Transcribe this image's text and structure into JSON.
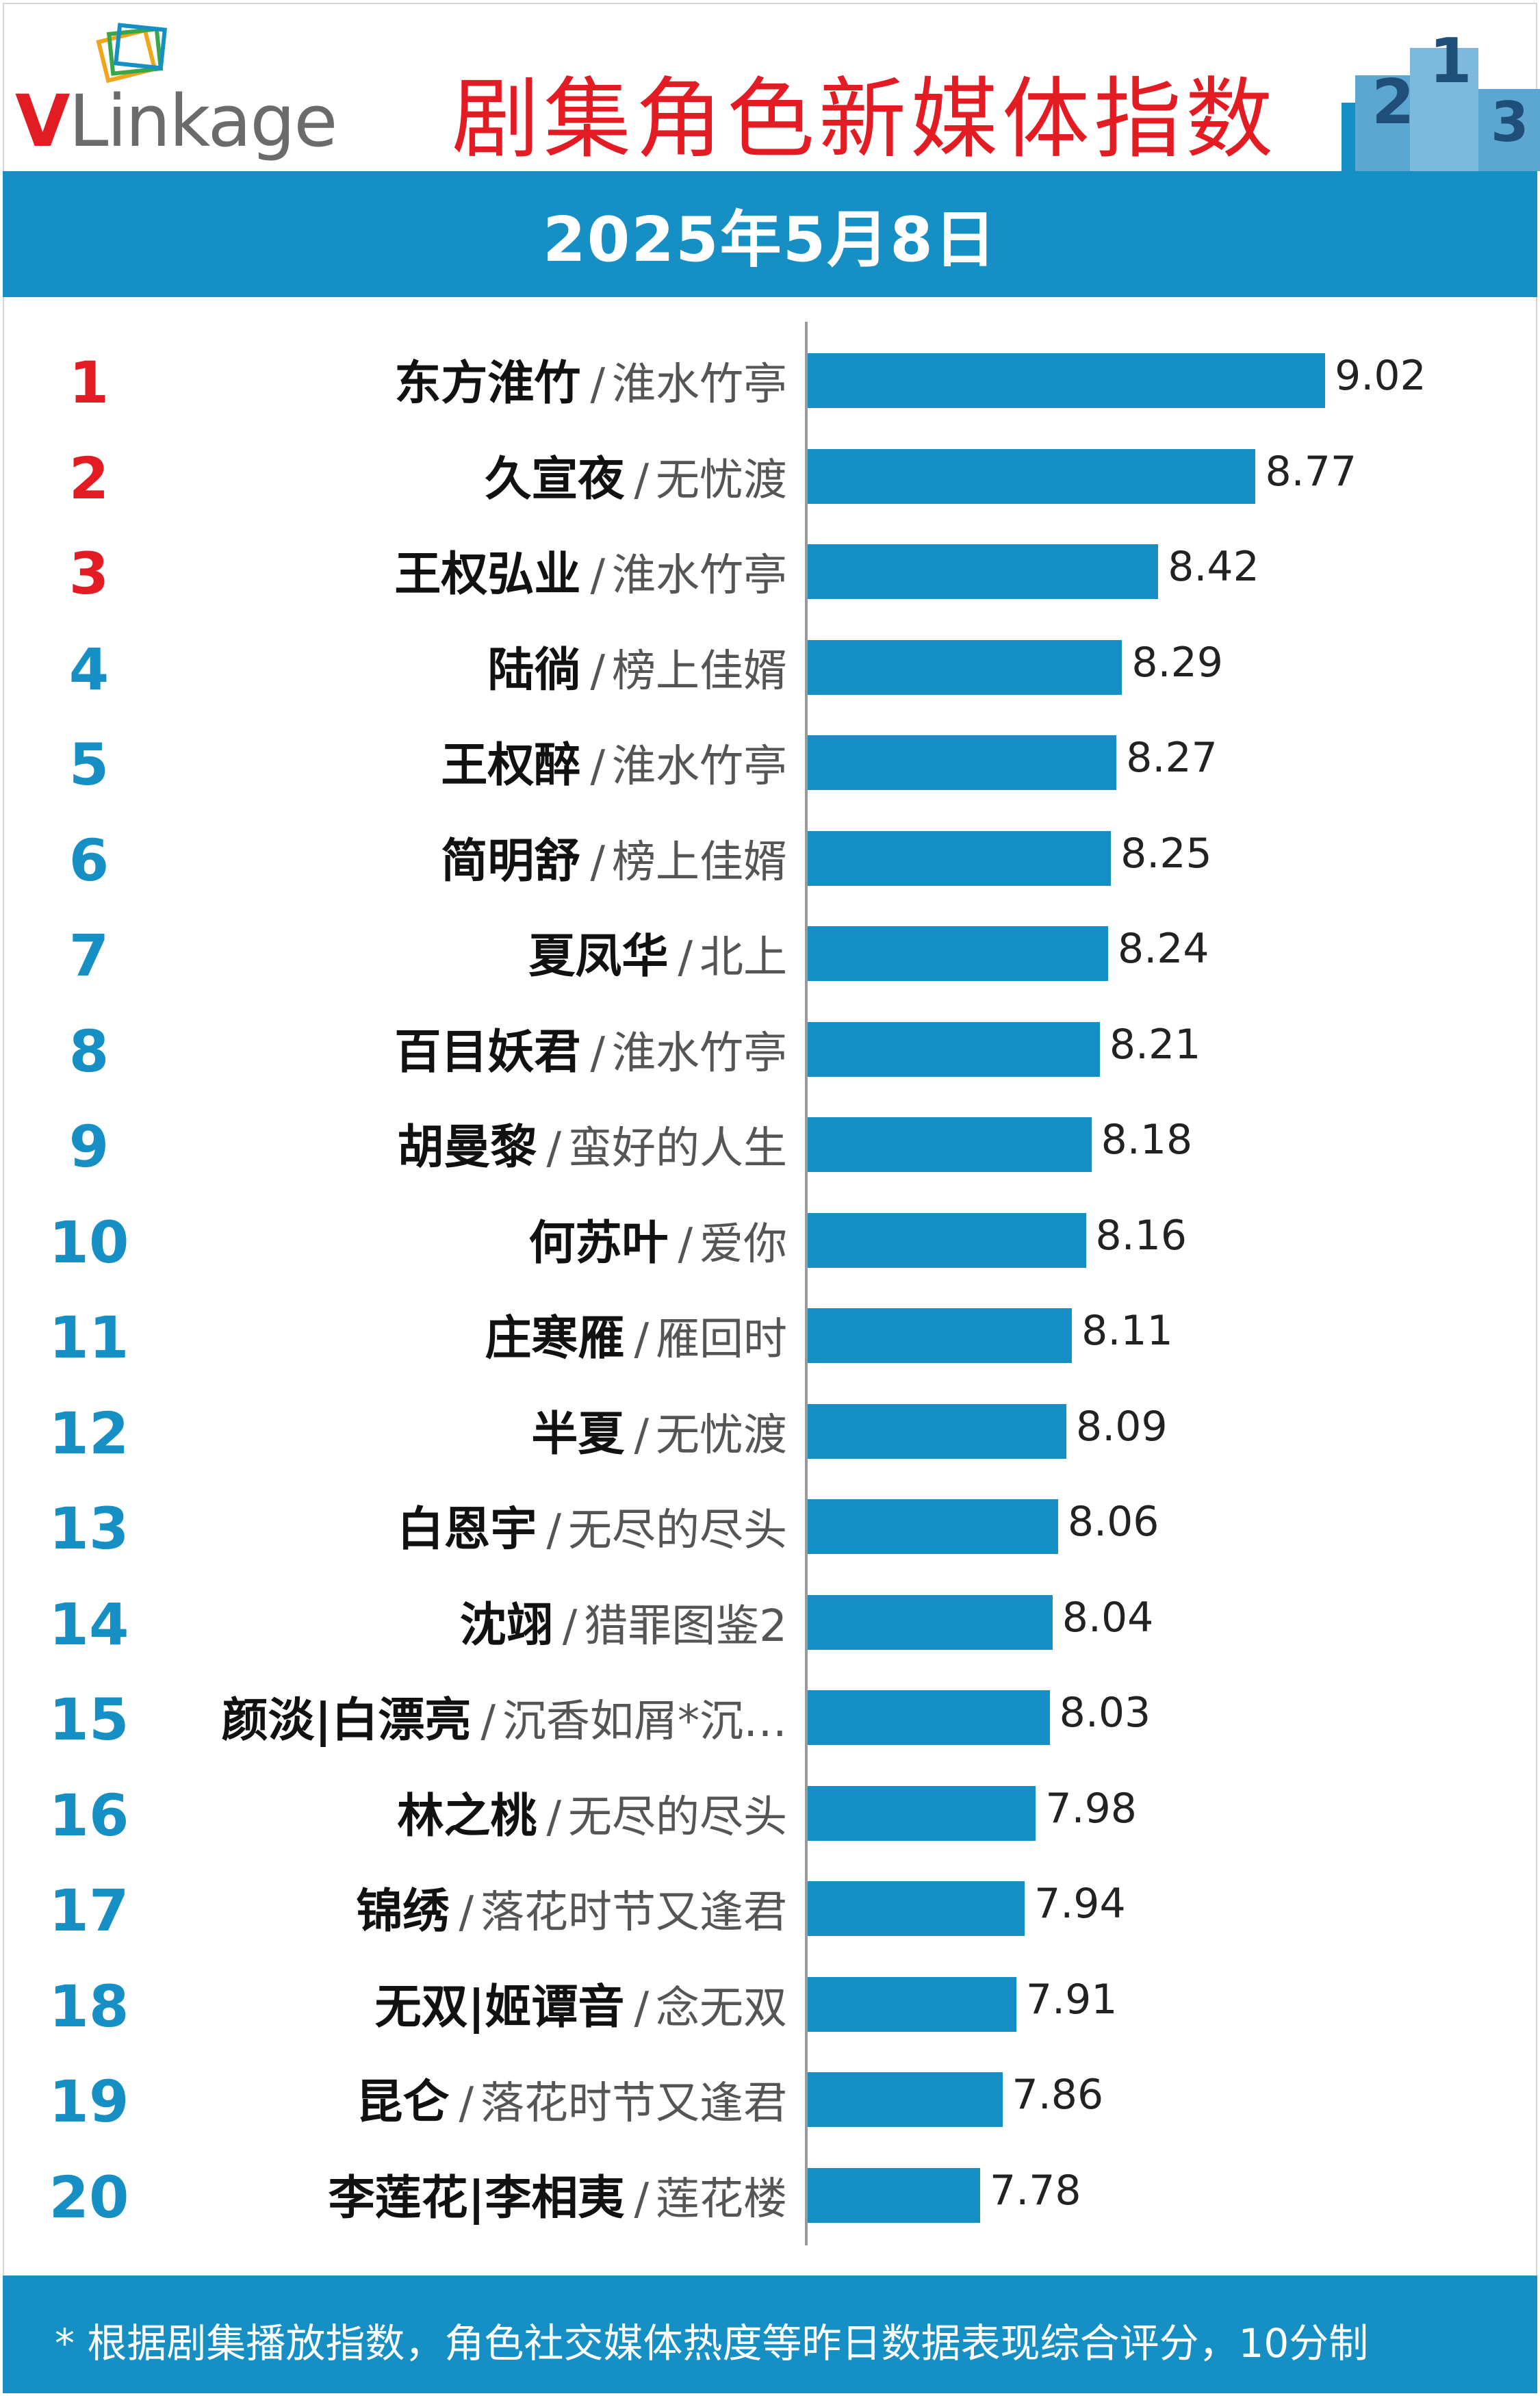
{
  "header": {
    "logo_text_v": "V",
    "logo_text_rest": "Linkage",
    "title": "剧集角色新媒体指数",
    "podium_numbers": [
      "2",
      "1",
      "3"
    ]
  },
  "date": "2025年5月8日",
  "footnote": "* 根据剧集播放指数，角色社交媒体热度等昨日数据表现综合评分，10分制",
  "colors": {
    "accent_blue": "#1690c4",
    "title_red": "#e31b23",
    "top3_rank": "#e31b23",
    "other_rank": "#1690c4"
  },
  "chart_data": {
    "type": "bar",
    "orientation": "horizontal",
    "xlim": [
      0,
      10
    ],
    "grid": false,
    "rows": [
      {
        "rank": "1",
        "name": "东方淮竹",
        "drama": "淮水竹亭",
        "value": 9.02,
        "value_label": "9.02"
      },
      {
        "rank": "2",
        "name": "久宣夜",
        "drama": "无忧渡",
        "value": 8.77,
        "value_label": "8.77"
      },
      {
        "rank": "3",
        "name": "王权弘业",
        "drama": "淮水竹亭",
        "value": 8.42,
        "value_label": "8.42"
      },
      {
        "rank": "4",
        "name": "陆徜",
        "drama": "榜上佳婿",
        "value": 8.29,
        "value_label": "8.29"
      },
      {
        "rank": "5",
        "name": "王权醉",
        "drama": "淮水竹亭",
        "value": 8.27,
        "value_label": "8.27"
      },
      {
        "rank": "6",
        "name": "简明舒",
        "drama": "榜上佳婿",
        "value": 8.25,
        "value_label": "8.25"
      },
      {
        "rank": "7",
        "name": "夏凤华",
        "drama": "北上",
        "value": 8.24,
        "value_label": "8.24"
      },
      {
        "rank": "8",
        "name": "百目妖君",
        "drama": "淮水竹亭",
        "value": 8.21,
        "value_label": "8.21"
      },
      {
        "rank": "9",
        "name": "胡曼黎",
        "drama": "蛮好的人生",
        "value": 8.18,
        "value_label": "8.18"
      },
      {
        "rank": "10",
        "name": "何苏叶",
        "drama": "爱你",
        "value": 8.16,
        "value_label": "8.16"
      },
      {
        "rank": "11",
        "name": "庄寒雁",
        "drama": "雁回时",
        "value": 8.11,
        "value_label": "8.11"
      },
      {
        "rank": "12",
        "name": "半夏",
        "drama": "无忧渡",
        "value": 8.09,
        "value_label": "8.09"
      },
      {
        "rank": "13",
        "name": "白恩宇",
        "drama": "无尽的尽头",
        "value": 8.06,
        "value_label": "8.06"
      },
      {
        "rank": "14",
        "name": "沈翊",
        "drama": "猎罪图鉴2",
        "value": 8.04,
        "value_label": "8.04"
      },
      {
        "rank": "15",
        "name": "颜淡|白漂亮",
        "drama": "沉香如屑*沉…",
        "value": 8.03,
        "value_label": "8.03"
      },
      {
        "rank": "16",
        "name": "林之桃",
        "drama": "无尽的尽头",
        "value": 7.98,
        "value_label": "7.98"
      },
      {
        "rank": "17",
        "name": "锦绣",
        "drama": "落花时节又逢君",
        "value": 7.94,
        "value_label": "7.94"
      },
      {
        "rank": "18",
        "name": "无双|姬谭音",
        "drama": "念无双",
        "value": 7.91,
        "value_label": "7.91"
      },
      {
        "rank": "19",
        "name": "昆仑",
        "drama": "落花时节又逢君",
        "value": 7.86,
        "value_label": "7.86"
      },
      {
        "rank": "20",
        "name": "李莲花|李相夷",
        "drama": "莲花楼",
        "value": 7.78,
        "value_label": "7.78"
      }
    ]
  }
}
